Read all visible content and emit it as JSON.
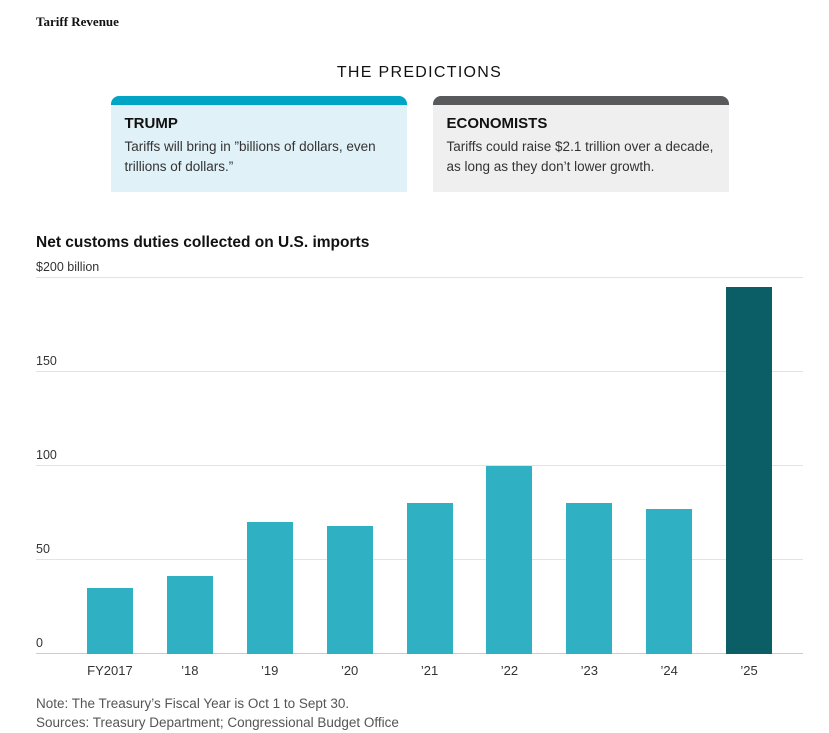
{
  "kicker": "Tariff Revenue",
  "predictions": {
    "heading": "THE PREDICTIONS",
    "cards": [
      {
        "title": "TRUMP",
        "text": "Tariffs will bring in ”billions of dollars, even trillions of dollars.”",
        "accent": "#00A5C6",
        "bg": "#E0F1F8"
      },
      {
        "title": "ECONOMISTS",
        "text": "Tariffs could raise $2.1 trillion over a decade, as long as they don’t lower growth.",
        "accent": "#58595B",
        "bg": "#EFEFEF"
      }
    ]
  },
  "chart_data": {
    "type": "bar",
    "title": "Net customs duties collected on U.S. imports",
    "categories": [
      "FY2017",
      "’18",
      "’19",
      "’20",
      "’21",
      "’22",
      "’23",
      "’24",
      "’25"
    ],
    "values": [
      35,
      41,
      70,
      68,
      80,
      100,
      80,
      77,
      195
    ],
    "xlabel": "",
    "ylabel": "",
    "ylim": [
      0,
      200
    ],
    "yticks": [
      0,
      50,
      100,
      150,
      200
    ],
    "ytick_labels": [
      "0",
      "50",
      "100",
      "150",
      "$200 billion"
    ],
    "grid": true,
    "legend": false,
    "bar_color": "#2FB0C3",
    "highlight_color": "#0B5E66",
    "highlight_index": 8
  },
  "footer": {
    "note": "Note: The Treasury’s Fiscal Year is Oct 1 to Sept 30.",
    "sources": "Sources: Treasury Department; Congressional Budget Office"
  }
}
